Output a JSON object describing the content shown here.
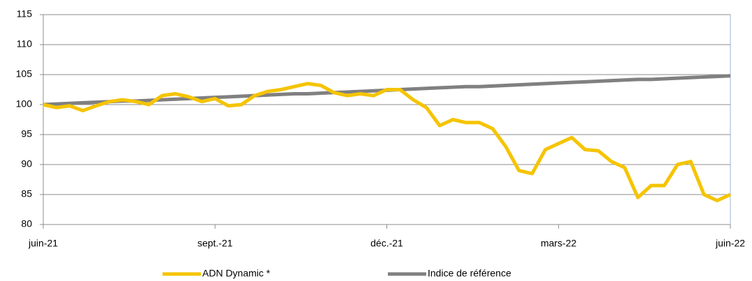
{
  "chart_data": {
    "type": "line",
    "categories": [
      "juin-21",
      null,
      null,
      null,
      null,
      null,
      null,
      null,
      null,
      null,
      null,
      null,
      null,
      "sept.-21",
      null,
      null,
      null,
      null,
      null,
      null,
      null,
      null,
      null,
      null,
      null,
      null,
      "déc.-21",
      null,
      null,
      null,
      null,
      null,
      null,
      null,
      null,
      null,
      null,
      null,
      null,
      "mars-22",
      null,
      null,
      null,
      null,
      null,
      null,
      null,
      null,
      null,
      null,
      null,
      null,
      "juin-22"
    ],
    "series": [
      {
        "name": "ADN Dynamic *",
        "color": "#f5c400",
        "values": [
          100,
          99.5,
          99.8,
          99,
          99.8,
          100.5,
          100.8,
          100.5,
          100,
          101.5,
          101.8,
          101.3,
          100.5,
          101,
          99.8,
          100,
          101.5,
          102.2,
          102.5,
          103,
          103.5,
          103.2,
          102,
          101.5,
          101.8,
          101.5,
          102.5,
          102.5,
          100.8,
          99.5,
          96.5,
          97.5,
          97,
          97,
          96,
          93,
          89,
          88.5,
          92.5,
          93.5,
          94.5,
          92.5,
          92.3,
          90.5,
          89.5,
          84.5,
          86.5,
          86.5,
          90,
          90.5,
          85,
          84,
          85
        ]
      },
      {
        "name": "Indice de référence",
        "color": "#808080",
        "values": [
          100,
          100.1,
          100.2,
          100.3,
          100.4,
          100.5,
          100.6,
          100.6,
          100.7,
          100.8,
          100.9,
          101,
          101.1,
          101.2,
          101.3,
          101.4,
          101.5,
          101.6,
          101.7,
          101.8,
          101.8,
          101.9,
          102,
          102.1,
          102.2,
          102.3,
          102.4,
          102.5,
          102.6,
          102.7,
          102.8,
          102.9,
          103,
          103,
          103.1,
          103.2,
          103.3,
          103.4,
          103.5,
          103.6,
          103.7,
          103.8,
          103.9,
          104,
          104.1,
          104.2,
          104.2,
          104.3,
          104.4,
          104.5,
          104.6,
          104.7,
          104.8
        ]
      }
    ],
    "ylim": [
      80,
      115
    ],
    "yticks": [
      80,
      85,
      90,
      95,
      100,
      105,
      110,
      115
    ],
    "grid": true,
    "legend": "bottom"
  }
}
